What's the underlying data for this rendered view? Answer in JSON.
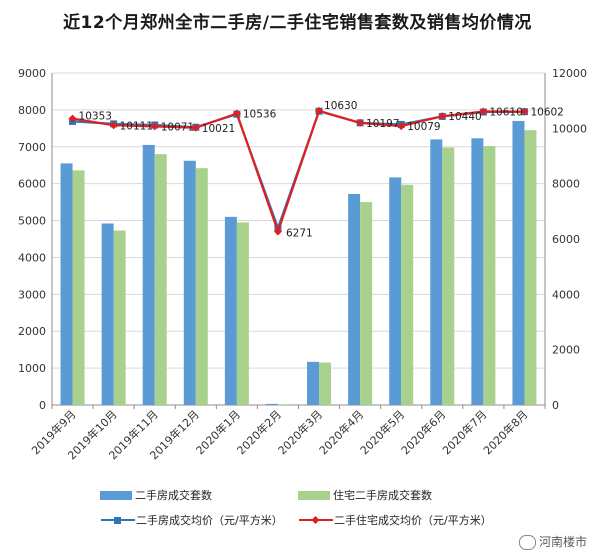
{
  "chart_data": {
    "type": "bar",
    "title": "近12个月郑州全市二手房/二手住宅销售套数及销售均价情况",
    "categories": [
      "2019年9月",
      "2019年10月",
      "2019年11月",
      "2019年12月",
      "2020年1月",
      "2020年2月",
      "2020年3月",
      "2020年4月",
      "2020年5月",
      "2020年6月",
      "2020年7月",
      "2020年8月"
    ],
    "y_left": {
      "min": 0,
      "max": 9000,
      "step": 1000,
      "ticks": [
        "0",
        "1000",
        "2000",
        "3000",
        "4000",
        "5000",
        "6000",
        "7000",
        "8000",
        "9000"
      ]
    },
    "y_right": {
      "min": 0,
      "max": 12000,
      "step": 2000,
      "ticks": [
        "0",
        "2000",
        "4000",
        "6000",
        "8000",
        "10000",
        "12000"
      ]
    },
    "grid": true,
    "legend_position": "bottom",
    "series": [
      {
        "name": "二手房成交套数",
        "type": "bar",
        "axis": "left",
        "color": "#5b9bd5",
        "values": [
          6550,
          4920,
          7050,
          6620,
          5100,
          30,
          1170,
          5720,
          6170,
          7200,
          7230,
          7700
        ]
      },
      {
        "name": "住宅二手房成交套数",
        "type": "bar",
        "axis": "left",
        "color": "#a9d18e",
        "values": [
          6360,
          4730,
          6800,
          6420,
          4950,
          20,
          1150,
          5500,
          5970,
          6980,
          7020,
          7450
        ]
      },
      {
        "name": "二手房成交均价（元/平方米）",
        "type": "line",
        "axis": "right",
        "color": "#2e75b6",
        "values": [
          10250,
          10160,
          10120,
          10040,
          10510,
          6400,
          10620,
          10200,
          10140,
          10430,
          10590,
          10600
        ]
      },
      {
        "name": "二手住宅成交均价（元/平方米）",
        "type": "line",
        "axis": "right",
        "color": "#e02020",
        "values": [
          10353,
          10111,
          10071,
          10021,
          10536,
          6271,
          10630,
          10197,
          10079,
          10440,
          10610,
          10602
        ]
      }
    ],
    "data_labels": [
      "10353",
      "10111",
      "10071",
      "10021",
      "10536",
      "6271",
      "10630",
      "10197",
      "10079",
      "10440",
      "10610",
      "10602"
    ]
  },
  "watermark": {
    "text": "河南楼市",
    "icon": "wechat-icon"
  }
}
